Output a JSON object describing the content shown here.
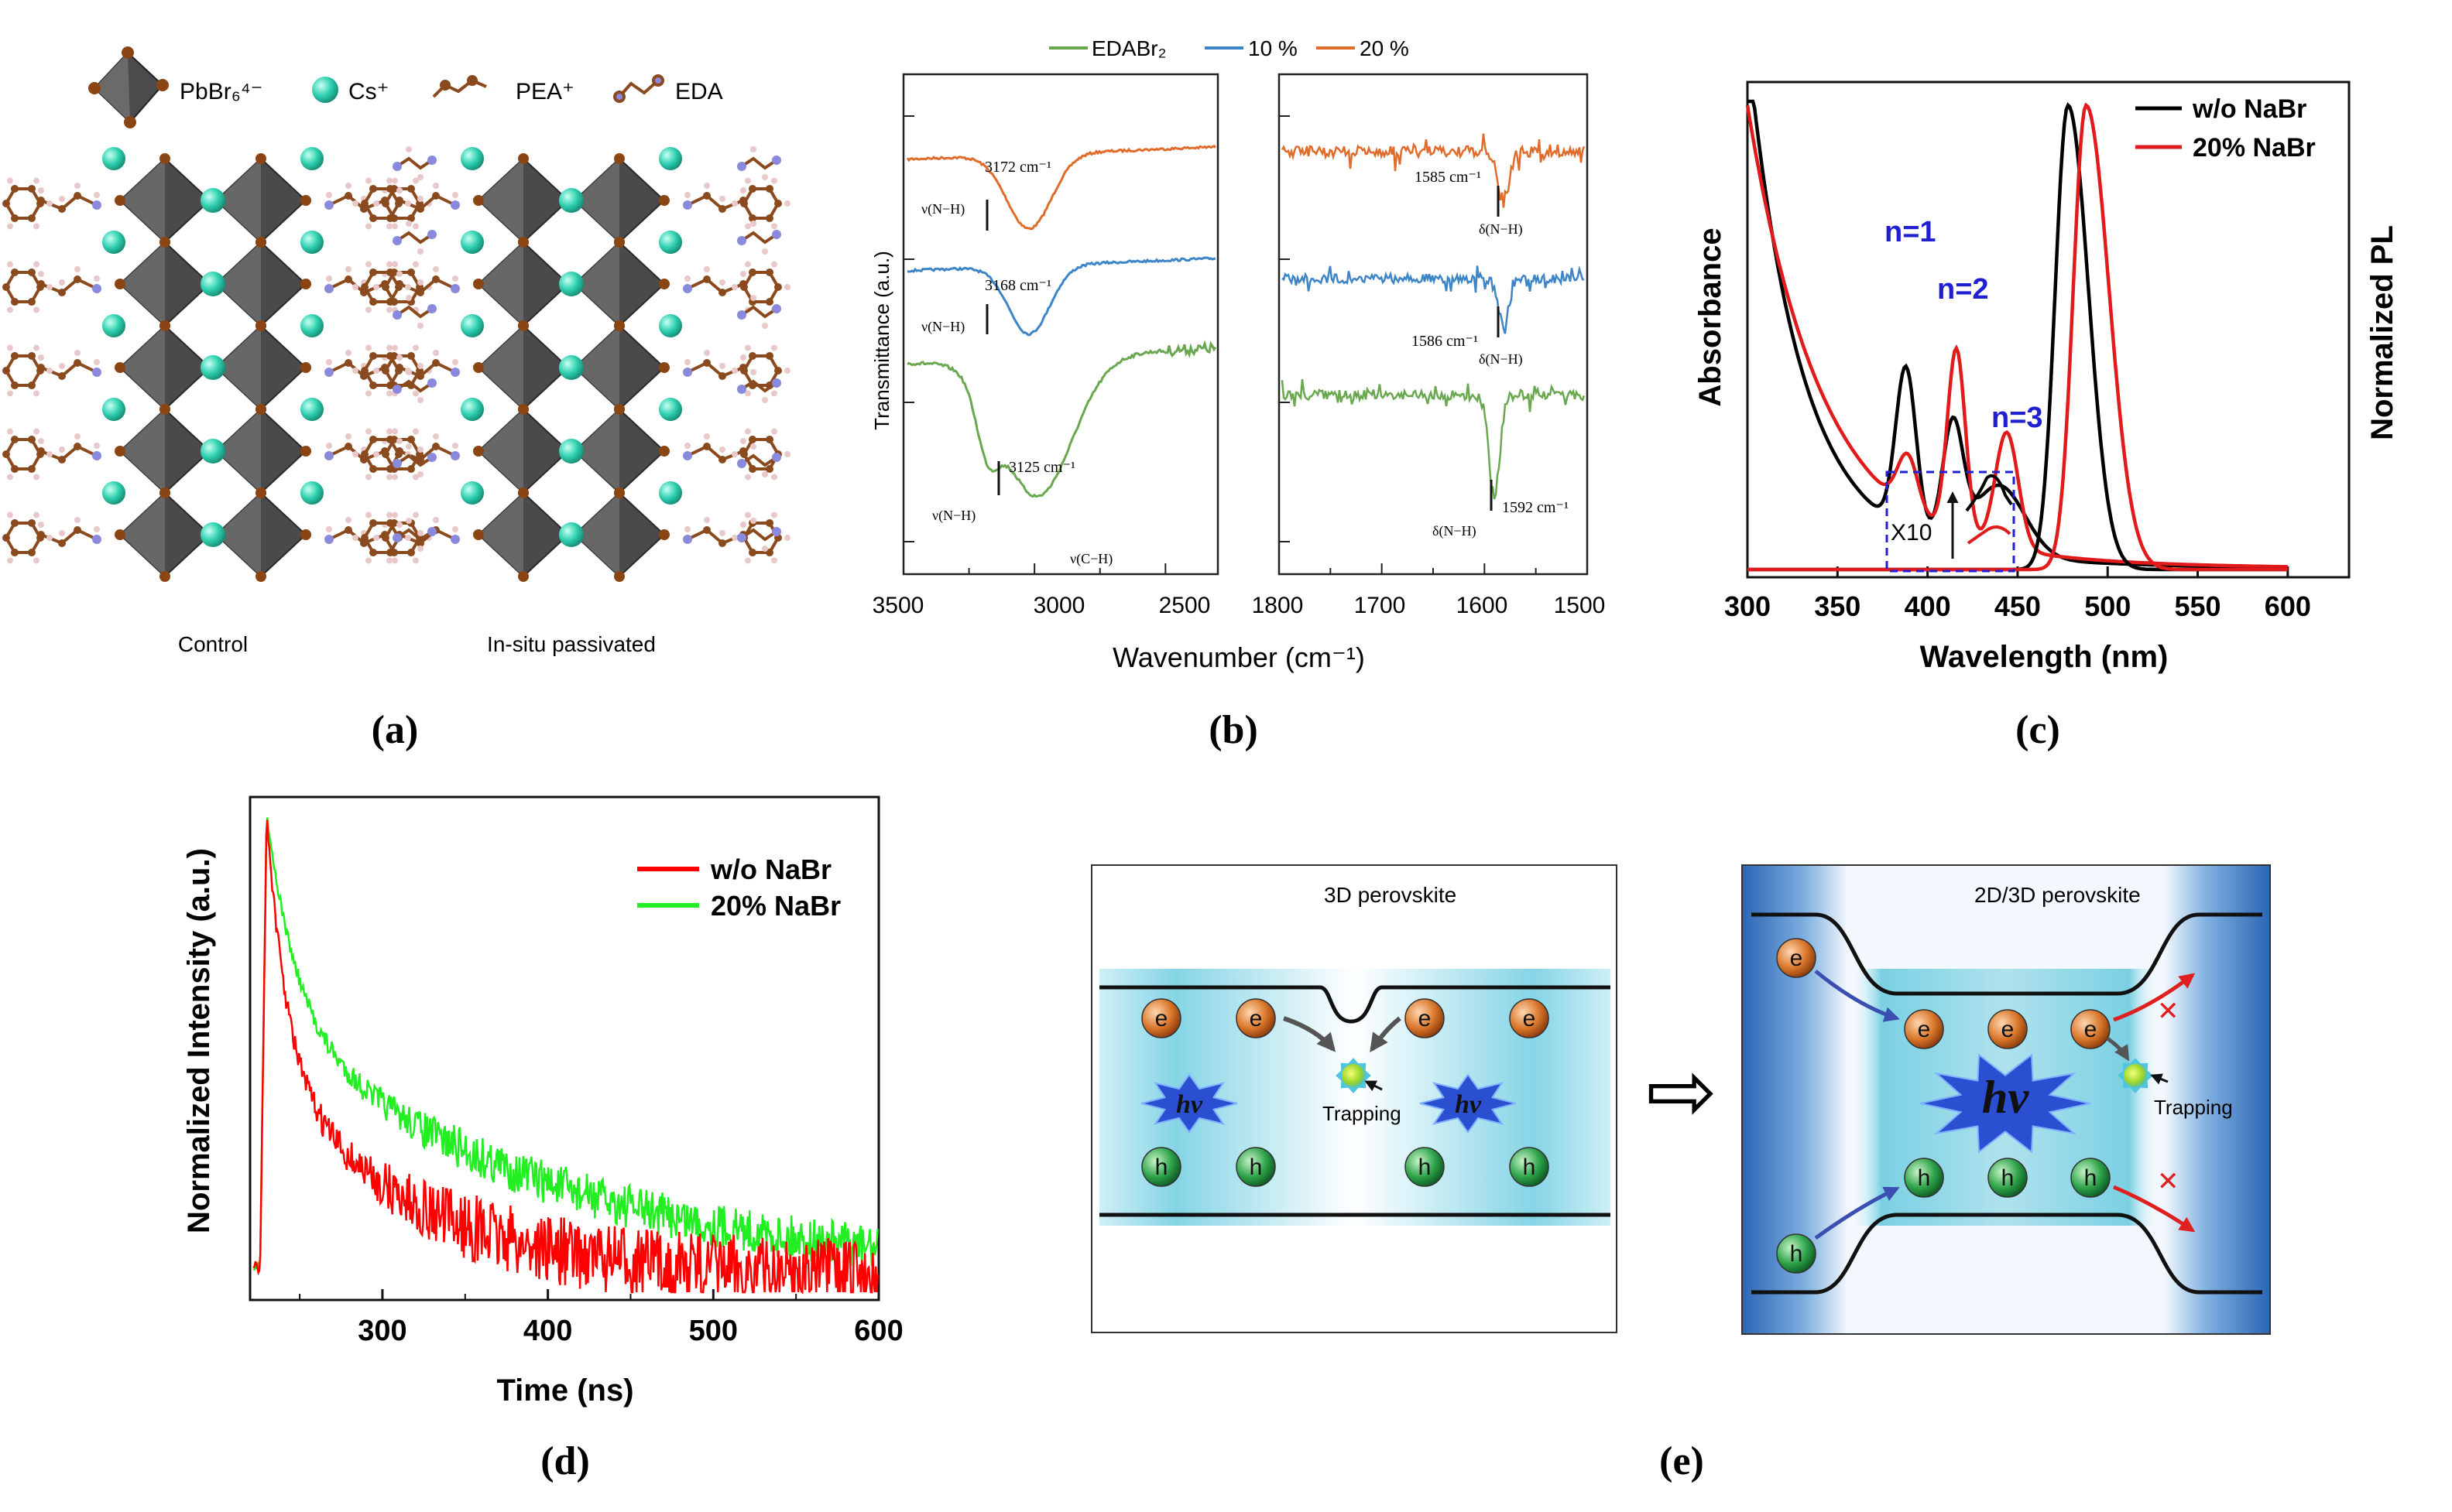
{
  "panel_labels": {
    "a": "(a)",
    "b": "(b)",
    "c": "(c)",
    "d": "(d)",
    "e": "(e)"
  },
  "panel_a": {
    "legend": {
      "octahedron": "PbBr₆⁴⁻",
      "cs": "Cs⁺",
      "pea": "PEA⁺",
      "eda": "EDA"
    },
    "label_left": "Control",
    "label_right": "In-situ passivated",
    "colors": {
      "octahedron": "#555555",
      "cs": "#3fd8b8",
      "br": "#8b4513",
      "carbon": "#8b4a1e",
      "hydrogen": "#e8c8c8",
      "nitrogen": "#8a8adc"
    }
  },
  "panel_b": {
    "legend": [
      {
        "label": "EDABr₂",
        "color": "#6aa84f"
      },
      {
        "label": "10 %",
        "color": "#3d85c6"
      },
      {
        "label": "20 %",
        "color": "#e06c2c"
      }
    ],
    "ylabel": "Transmittance (a.u.)",
    "xlabel": "Wavenumber (cm⁻¹)",
    "left_ticks": [
      "3500",
      "3000",
      "2500"
    ],
    "right_ticks": [
      "1800",
      "1700",
      "1600",
      "1500"
    ],
    "annotations": {
      "a1": "3172 cm⁻¹",
      "a2": "3168 cm⁻¹",
      "a3": "3125 cm⁻¹",
      "nu_nh": "ν(N−H)",
      "nu_ch": "ν(C−H)",
      "b1": "1585 cm⁻¹",
      "b2": "1586 cm⁻¹",
      "b3": "1592 cm⁻¹",
      "delta_nh": "δ(N−H)"
    }
  },
  "panel_c": {
    "ylabel_left": "Absorbance",
    "ylabel_right": "Normalized PL",
    "xlabel": "Wavelength (nm)",
    "xticks": [
      "300",
      "350",
      "400",
      "450",
      "500",
      "550",
      "600"
    ],
    "legend": [
      {
        "label": "w/o NaBr",
        "color": "#000000"
      },
      {
        "label": "20% NaBr",
        "color": "#e11b1b"
      }
    ],
    "peaks": [
      "n=1",
      "n=2",
      "n=3"
    ],
    "inset_label": "X10",
    "peak_color": "#2020d0"
  },
  "panel_d": {
    "ylabel": "Normalized Intensity (a.u.)",
    "xlabel": "Time (ns)",
    "xticks": [
      "300",
      "400",
      "500",
      "600"
    ],
    "legend": [
      {
        "label": "w/o NaBr",
        "color": "#ff0000"
      },
      {
        "label": "20% NaBr",
        "color": "#22ee22"
      }
    ]
  },
  "panel_e": {
    "left_title": "3D perovskite",
    "right_title": "2D/3D perovskite",
    "electron": "e",
    "hole": "h",
    "photon": "hv",
    "trapping": "Trapping",
    "cross": "✕",
    "arrow": "⇨"
  }
}
